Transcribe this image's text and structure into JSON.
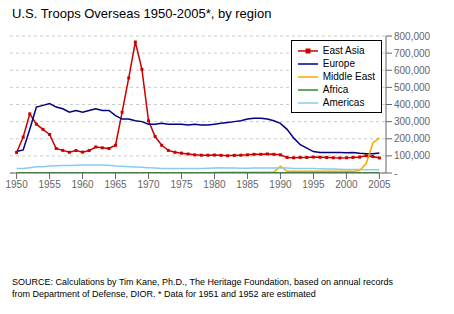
{
  "chart_data": {
    "type": "line",
    "title": "U.S. Troops Overseas 1950-2005*, by region",
    "annotation": "SOURCE: Calculations by Tim Kane, Ph.D., The Heritage Foundation, based on annual records\nfrom Department of Defense, DIOR.  * Data for 1951 and 1952 are estimated",
    "x": [
      1950,
      1951,
      1952,
      1953,
      1954,
      1955,
      1956,
      1957,
      1958,
      1959,
      1960,
      1961,
      1962,
      1963,
      1964,
      1965,
      1966,
      1967,
      1968,
      1969,
      1970,
      1971,
      1972,
      1973,
      1974,
      1975,
      1976,
      1977,
      1978,
      1979,
      1980,
      1981,
      1982,
      1983,
      1984,
      1985,
      1986,
      1987,
      1988,
      1989,
      1990,
      1991,
      1992,
      1993,
      1994,
      1995,
      1996,
      1997,
      1998,
      1999,
      2000,
      2001,
      2002,
      2003,
      2004,
      2005
    ],
    "series": [
      {
        "name": "East Asia",
        "color": "#cc0000",
        "marker": "square",
        "values": [
          120000,
          210000,
          345000,
          285000,
          255000,
          225000,
          143000,
          132000,
          121000,
          131000,
          122000,
          131000,
          152000,
          147000,
          143000,
          162000,
          355000,
          555000,
          765000,
          605000,
          305000,
          213000,
          162000,
          132000,
          121000,
          116000,
          111000,
          106000,
          104000,
          104000,
          105000,
          103000,
          101000,
          103000,
          104000,
          106000,
          109000,
          109000,
          111000,
          109000,
          106000,
          91000,
          89000,
          91000,
          91000,
          93000,
          92000,
          91000,
          89000,
          88000,
          89000,
          91000,
          93000,
          101000,
          96000,
          88000
        ]
      },
      {
        "name": "Europe",
        "color": "#000080",
        "values": [
          125000,
          135000,
          255000,
          385000,
          395000,
          405000,
          385000,
          375000,
          355000,
          365000,
          355000,
          365000,
          375000,
          365000,
          365000,
          335000,
          315000,
          315000,
          305000,
          300000,
          285000,
          285000,
          290000,
          285000,
          285000,
          285000,
          280000,
          285000,
          280000,
          280000,
          285000,
          290000,
          295000,
          300000,
          305000,
          315000,
          320000,
          320000,
          315000,
          305000,
          290000,
          255000,
          205000,
          165000,
          145000,
          125000,
          120000,
          120000,
          120000,
          120000,
          118000,
          120000,
          115000,
          112000,
          112000,
          117000
        ]
      },
      {
        "name": "Middle East",
        "color": "#ffa500",
        "values": [
          2000,
          2000,
          2000,
          2000,
          2000,
          2000,
          2000,
          2000,
          2000,
          2000,
          2000,
          2000,
          2000,
          2000,
          2000,
          2000,
          2000,
          2000,
          2000,
          2000,
          2000,
          2000,
          2000,
          2000,
          2000,
          2000,
          2000,
          2000,
          2000,
          2000,
          3000,
          4000,
          5000,
          5000,
          5000,
          5000,
          5000,
          5000,
          5000,
          5000,
          40000,
          10000,
          10000,
          10000,
          10000,
          10000,
          10000,
          10000,
          10000,
          10000,
          10000,
          10000,
          15000,
          55000,
          175000,
          205000
        ]
      },
      {
        "name": "Africa",
        "color": "#2e8b2e",
        "values": [
          1500,
          1500,
          1500,
          1500,
          1500,
          1500,
          1500,
          1500,
          1500,
          1500,
          1500,
          1500,
          1500,
          1500,
          1500,
          1500,
          1500,
          1500,
          1500,
          1500,
          1500,
          1500,
          1500,
          1500,
          1500,
          1500,
          1500,
          1500,
          1500,
          1500,
          1500,
          1500,
          1500,
          1500,
          1500,
          1500,
          1500,
          1500,
          1500,
          1500,
          1500,
          1500,
          1500,
          1500,
          1500,
          1500,
          1500,
          1500,
          1500,
          1500,
          1500,
          1500,
          1500,
          1500,
          1500,
          1500
        ]
      },
      {
        "name": "Americas",
        "color": "#87ceeb",
        "values": [
          26000,
          26000,
          31000,
          36000,
          36000,
          41000,
          43000,
          44000,
          44000,
          45000,
          46000,
          47000,
          47000,
          46000,
          45000,
          41000,
          39000,
          37000,
          35000,
          33000,
          31000,
          29000,
          27000,
          27000,
          27000,
          26000,
          26000,
          27000,
          27000,
          28000,
          29000,
          30000,
          29000,
          29000,
          28000,
          28000,
          29000,
          29000,
          29000,
          29000,
          31000,
          29000,
          27000,
          26000,
          26000,
          26000,
          25000,
          24000,
          23000,
          22000,
          21000,
          21000,
          20000,
          19000,
          19000,
          19000
        ]
      }
    ],
    "xlim": [
      1949,
      2006
    ],
    "xticks": [
      1950,
      1955,
      1960,
      1965,
      1970,
      1975,
      1980,
      1985,
      1990,
      1995,
      2000,
      2005
    ],
    "ylim": [
      0,
      800000
    ],
    "yticks": [
      {
        "value": 0,
        "label": "-"
      },
      {
        "value": 100000,
        "label": "100,000"
      },
      {
        "value": 200000,
        "label": "200,000"
      },
      {
        "value": 300000,
        "label": "300,000"
      },
      {
        "value": 400000,
        "label": "400,000"
      },
      {
        "value": 500000,
        "label": "500,000"
      },
      {
        "value": 600000,
        "label": "600,000"
      },
      {
        "value": 700000,
        "label": "700,000"
      },
      {
        "value": 800000,
        "label": "800,000"
      }
    ],
    "grid": true,
    "legend": "upper right"
  }
}
